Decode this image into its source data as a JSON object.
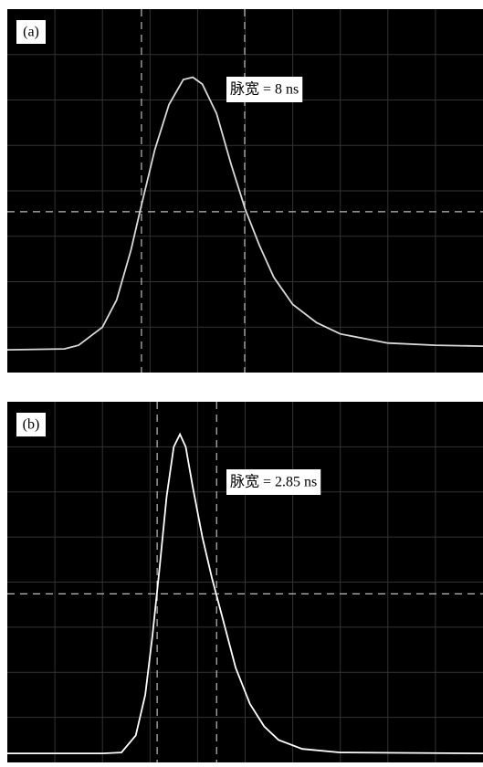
{
  "chart_data": [
    {
      "type": "line",
      "panel_label": "(a)",
      "annotation": "脉宽 = 8 ns",
      "color": "#d9d9d9",
      "grid": true,
      "xlim": [
        0,
        10
      ],
      "ylim": [
        0,
        8
      ],
      "x": [
        0,
        1.2,
        1.5,
        2.0,
        2.3,
        2.6,
        2.8,
        3.1,
        3.4,
        3.7,
        3.9,
        4.1,
        4.4,
        4.7,
        5.0,
        5.3,
        5.6,
        6.0,
        6.5,
        7.0,
        8.0,
        9.0,
        10
      ],
      "values": [
        0.5,
        0.52,
        0.6,
        1.0,
        1.6,
        2.7,
        3.6,
        4.9,
        5.9,
        6.45,
        6.5,
        6.35,
        5.7,
        4.6,
        3.6,
        2.8,
        2.1,
        1.5,
        1.1,
        0.85,
        0.65,
        0.6,
        0.58
      ],
      "cursors_x": [
        2.82,
        4.99
      ],
      "cursor_y": 3.54
    },
    {
      "type": "line",
      "panel_label": "(b)",
      "annotation": "脉宽 = 2.85 ns",
      "color": "#ffffff",
      "grid": true,
      "xlim": [
        0,
        10
      ],
      "ylim": [
        0,
        8
      ],
      "x": [
        0,
        2.0,
        2.4,
        2.7,
        2.9,
        3.05,
        3.2,
        3.35,
        3.5,
        3.63,
        3.75,
        3.9,
        4.1,
        4.3,
        4.5,
        4.8,
        5.1,
        5.4,
        5.7,
        6.2,
        7.0,
        10
      ],
      "values": [
        0.2,
        0.2,
        0.22,
        0.6,
        1.5,
        2.8,
        4.3,
        5.9,
        7.0,
        7.28,
        7.0,
        6.1,
        5.0,
        4.1,
        3.3,
        2.1,
        1.3,
        0.8,
        0.5,
        0.3,
        0.22,
        0.2
      ],
      "cursors_x": [
        3.15,
        4.4
      ],
      "cursor_y": 3.74
    }
  ]
}
